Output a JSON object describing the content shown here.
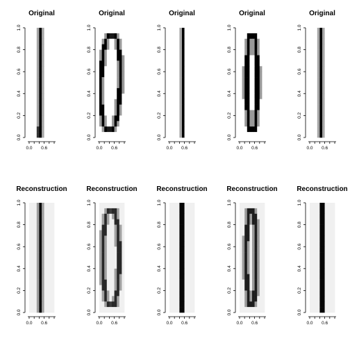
{
  "rows": [
    {
      "title": "Original",
      "kind": "original"
    },
    {
      "title": "Reconstruction",
      "kind": "reconstruction"
    }
  ],
  "panels_per_row": 5,
  "axes": {
    "x_tick_labels": [
      "0.0",
      "0.6"
    ],
    "y_tick_labels": [
      "0.0",
      "0.2",
      "0.4",
      "0.6",
      "0.8",
      "1.0"
    ],
    "x_ticks": [
      0.0,
      0.6
    ],
    "y_ticks": [
      0.0,
      0.2,
      0.4,
      0.6,
      0.8,
      1.0
    ]
  },
  "chart_data": {
    "type": "heatmap",
    "grid_cols": 10,
    "grid_rows": 20,
    "colormap": "grayscale (white = 0, black = 1)",
    "xlim": [
      0,
      1
    ],
    "ylim": [
      0,
      1
    ],
    "panels": [
      {
        "row": "Original",
        "col": 1,
        "shape": "thin vertical line",
        "x_center": 0.47,
        "half_width": 0.0,
        "stroke": 1,
        "bottom_blob": true
      },
      {
        "row": "Original",
        "col": 2,
        "shape": "ellipse outline",
        "x_center": 0.45,
        "half_width": 0.38,
        "stroke": 1,
        "tilt": 0.12
      },
      {
        "row": "Original",
        "col": 3,
        "shape": "thin vertical line",
        "x_center": 0.52,
        "half_width": 0.0,
        "stroke": 1
      },
      {
        "row": "Original",
        "col": 4,
        "shape": "narrow ellipse outline",
        "x_center": 0.5,
        "half_width": 0.22,
        "stroke": 1
      },
      {
        "row": "Original",
        "col": 5,
        "shape": "thin vertical line",
        "x_center": 0.47,
        "half_width": 0.0,
        "stroke": 1
      },
      {
        "row": "Reconstruction",
        "col": 1,
        "shape": "thin vertical line",
        "x_center": 0.47,
        "half_width": 0.0,
        "stroke": 1
      },
      {
        "row": "Reconstruction",
        "col": 2,
        "shape": "ellipse outline",
        "x_center": 0.47,
        "half_width": 0.33,
        "stroke": 0.85
      },
      {
        "row": "Reconstruction",
        "col": 3,
        "shape": "thin vertical line",
        "x_center": 0.5,
        "half_width": 0.0,
        "stroke": 1
      },
      {
        "row": "Reconstruction",
        "col": 4,
        "shape": "narrow ellipse outline",
        "x_center": 0.47,
        "half_width": 0.2,
        "stroke": 0.9
      },
      {
        "row": "Reconstruction",
        "col": 5,
        "shape": "thin vertical line",
        "x_center": 0.5,
        "half_width": 0.0,
        "stroke": 1
      }
    ]
  }
}
